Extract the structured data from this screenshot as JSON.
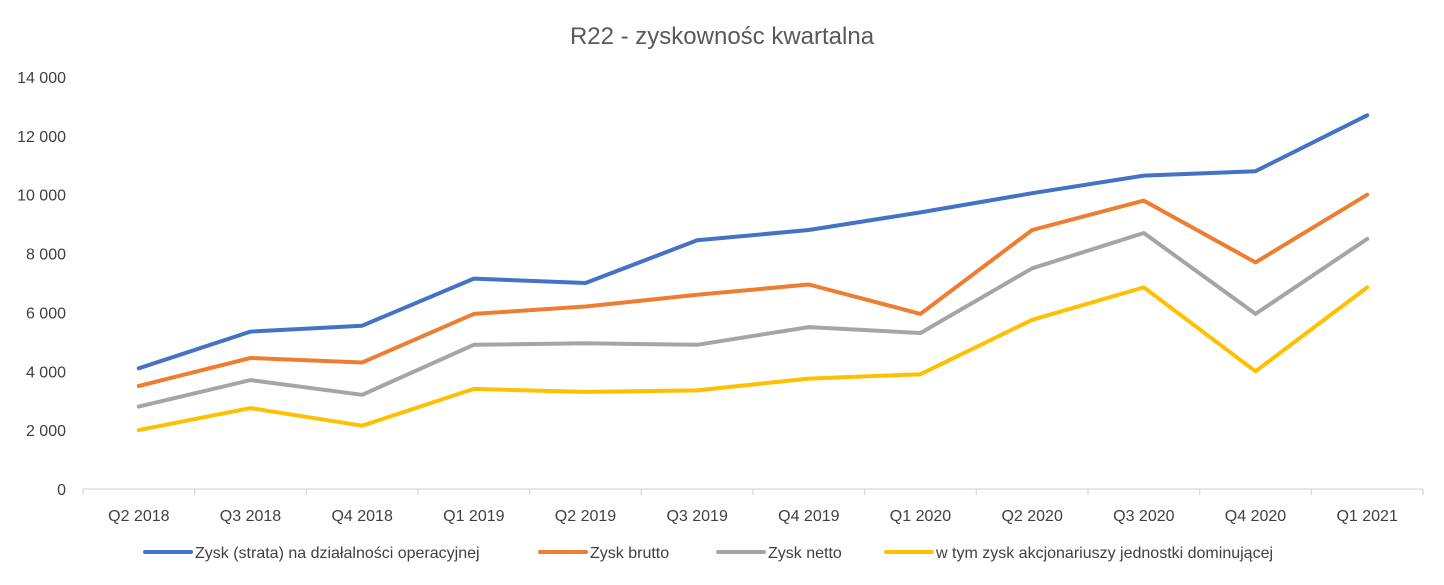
{
  "chart_data": {
    "type": "line",
    "title": "R22 - zyskownośc kwartalna",
    "xlabel": "",
    "ylabel": "",
    "categories": [
      "Q2 2018",
      "Q3 2018",
      "Q4 2018",
      "Q1 2019",
      "Q2 2019",
      "Q3 2019",
      "Q4 2019",
      "Q1 2020",
      "Q2 2020",
      "Q3 2020",
      "Q4 2020",
      "Q1 2021"
    ],
    "ylim": [
      0,
      14000
    ],
    "yticks": [
      0,
      2000,
      4000,
      6000,
      8000,
      10000,
      12000,
      14000
    ],
    "ytick_labels": [
      "0",
      "2 000",
      "4 000",
      "6 000",
      "8 000",
      "10 000",
      "12 000",
      "14 000"
    ],
    "grid": false,
    "legend_position": "bottom",
    "series": [
      {
        "name": "Zysk (strata) na działalności operacyjnej",
        "color": "#4472C4",
        "values": [
          4100,
          5350,
          5550,
          7150,
          7000,
          8450,
          8800,
          9400,
          10050,
          10650,
          10800,
          12700
        ]
      },
      {
        "name": "Zysk brutto",
        "color": "#ED7D31",
        "values": [
          3500,
          4450,
          4300,
          5950,
          6200,
          6600,
          6950,
          5950,
          8800,
          9800,
          7700,
          10000
        ]
      },
      {
        "name": "Zysk netto",
        "color": "#A5A5A5",
        "values": [
          2800,
          3700,
          3200,
          4900,
          4950,
          4900,
          5500,
          5300,
          7500,
          8700,
          5950,
          8500
        ]
      },
      {
        "name": "w tym zysk akcjonariuszy jednostki dominującej",
        "color": "#FFC000",
        "values": [
          2000,
          2750,
          2150,
          3400,
          3300,
          3350,
          3750,
          3900,
          5750,
          6850,
          4000,
          6850
        ]
      }
    ]
  }
}
